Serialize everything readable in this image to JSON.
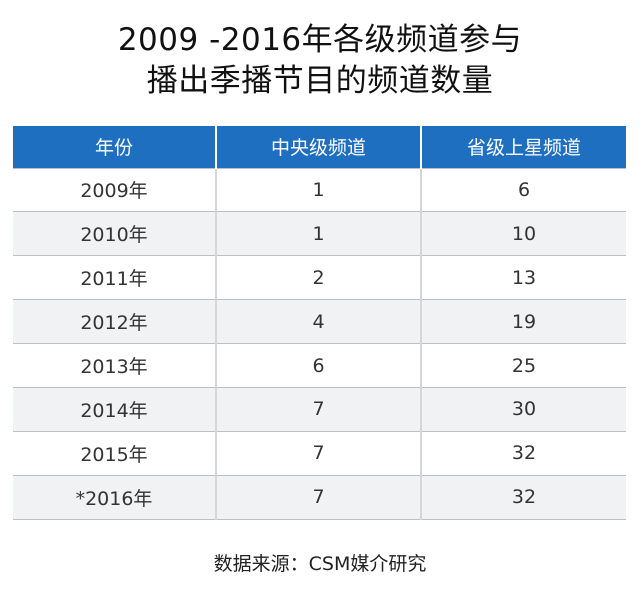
{
  "title_line1": "2009 -2016年各级频道参与",
  "title_line2": "播出季播节目的频道数量",
  "header_color": "#1f6fc0",
  "chart_data": {
    "type": "table",
    "columns": [
      "年份",
      "中央级频道",
      "省级上星频道"
    ],
    "rows": [
      [
        "2009年",
        "1",
        "6"
      ],
      [
        "2010年",
        "1",
        "10"
      ],
      [
        "2011年",
        "2",
        "13"
      ],
      [
        "2012年",
        "4",
        "19"
      ],
      [
        "2013年",
        "6",
        "25"
      ],
      [
        "2014年",
        "7",
        "30"
      ],
      [
        "2015年",
        "7",
        "32"
      ],
      [
        "*2016年",
        "7",
        "32"
      ]
    ]
  },
  "source": "数据来源：CSM媒介研究"
}
